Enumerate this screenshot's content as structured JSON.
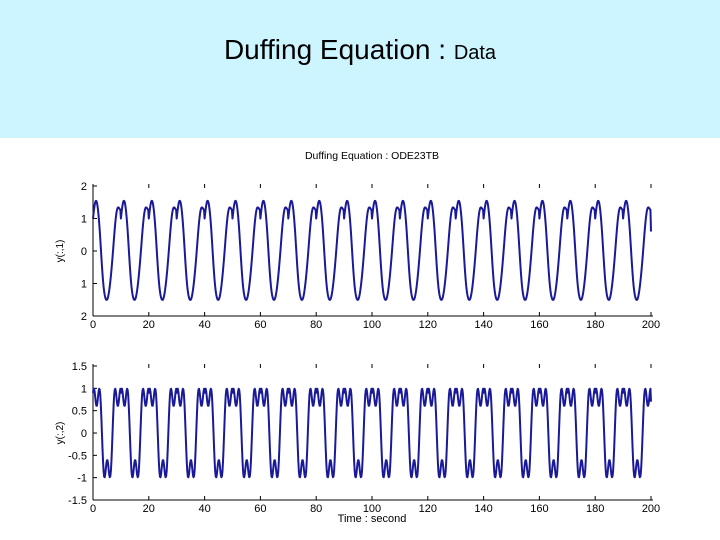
{
  "slide": {
    "title_main": "Duffing Equation : ",
    "title_sub": "Data",
    "header_color": "#ccf5ff"
  },
  "chart_data": [
    {
      "type": "line",
      "title": "Duffing Equation : ODE23TB",
      "xlabel": "",
      "ylabel": "y(:,1)",
      "xlim": [
        0,
        200
      ],
      "ylim": [
        -2,
        2
      ],
      "xticks": [
        "0",
        "20",
        "40",
        "60",
        "80",
        "100",
        "120",
        "140",
        "160",
        "180",
        "200"
      ],
      "yticks": [
        "2",
        "1",
        "0",
        "1",
        "2"
      ],
      "ytick_values": [
        2,
        1,
        0,
        -1,
        -2
      ],
      "grid": false,
      "color": "#1a1a99",
      "series": [
        {
          "x": [
            0,
            0.2,
            0.4,
            0.6,
            0.8,
            1.0,
            1.2,
            1.4,
            1.6,
            1.8,
            2.0,
            2.2,
            2.4,
            2.6,
            2.8,
            3.0,
            3.2,
            3.4,
            3.6,
            3.8,
            4.0,
            4.2,
            4.4,
            4.6,
            4.8,
            5.0,
            5.2,
            5.4,
            5.6,
            5.8,
            6.0,
            6.2,
            6.4,
            6.6,
            6.8,
            7.0,
            7.2,
            7.4,
            7.6,
            7.8,
            8.0,
            8.2,
            8.4,
            8.6,
            8.8,
            9.0,
            9.2,
            9.4,
            9.6,
            9.8
          ],
          "y": [
            1.0,
            1.159,
            1.301,
            1.418,
            1.5,
            1.543,
            1.54,
            1.49,
            1.397,
            1.262,
            1.089,
            0.881,
            0.643,
            0.38,
            0.102,
            -0.18,
            -0.45,
            -0.699,
            -0.918,
            -1.101,
            -1.245,
            -1.355,
            -1.433,
            -1.482,
            -1.505,
            -1.502,
            -1.472,
            -1.414,
            -1.33,
            -1.221,
            -1.091,
            -0.943,
            -0.777,
            -0.596,
            -0.399,
            -0.19,
            0.03,
            0.253,
            0.475,
            0.685,
            0.875,
            1.04,
            1.171,
            1.265,
            1.321,
            1.342,
            1.336,
            1.312,
            1.287,
            1.269
          ],
          "period": 10.0,
          "x_start": 0,
          "x_end": 200,
          "y_end": 0.6
        }
      ]
    },
    {
      "type": "line",
      "title": "",
      "xlabel": "Time : second",
      "ylabel": "y(:,2)",
      "xlim": [
        0,
        200
      ],
      "ylim": [
        -1.5,
        1.5
      ],
      "xticks": [
        "0",
        "20",
        "40",
        "60",
        "80",
        "100",
        "120",
        "140",
        "160",
        "180",
        "200"
      ],
      "yticks": [
        "1.5",
        "1",
        "0.5",
        "0",
        "-0.5",
        "-1",
        "-1.5"
      ],
      "ytick_values": [
        1.5,
        1,
        0.5,
        0,
        -0.5,
        -1,
        -1.5
      ],
      "grid": false,
      "color": "#1a1a99",
      "series": [
        {
          "x": [
            0,
            0.2,
            0.4,
            0.6,
            0.8,
            1.0,
            1.2,
            1.4,
            1.6,
            1.8,
            2.0,
            2.2,
            2.4,
            2.6,
            2.8,
            3.0,
            3.2,
            3.4,
            3.6,
            3.8,
            4.0,
            4.2,
            4.4,
            4.6,
            4.8,
            5.0,
            5.2,
            5.4,
            5.6,
            5.8,
            6.0,
            6.2,
            6.4,
            6.6,
            6.8,
            7.0,
            7.2,
            7.4,
            7.6,
            7.8,
            8.0,
            8.2,
            8.4,
            8.6,
            8.8,
            9.0,
            9.2,
            9.4,
            9.6,
            9.8
          ],
          "y": [
            0.9,
            0.99,
            0.99,
            0.92,
            0.8,
            0.68,
            0.61,
            0.61,
            0.69,
            0.81,
            0.93,
            0.99,
            0.97,
            0.86,
            0.64,
            0.34,
            0.0,
            -0.34,
            -0.64,
            -0.86,
            -0.98,
            -0.99,
            -0.92,
            -0.8,
            -0.68,
            -0.61,
            -0.61,
            -0.69,
            -0.81,
            -0.93,
            -0.99,
            -0.97,
            -0.86,
            -0.64,
            -0.34,
            0.0,
            0.34,
            0.64,
            0.86,
            0.97,
            0.99,
            0.93,
            0.81,
            0.69,
            0.61,
            0.61,
            0.68,
            0.8,
            0.92,
            0.99
          ],
          "period": 10.0,
          "x_start": 0,
          "x_end": 200,
          "y_end": 0.7
        }
      ]
    }
  ]
}
